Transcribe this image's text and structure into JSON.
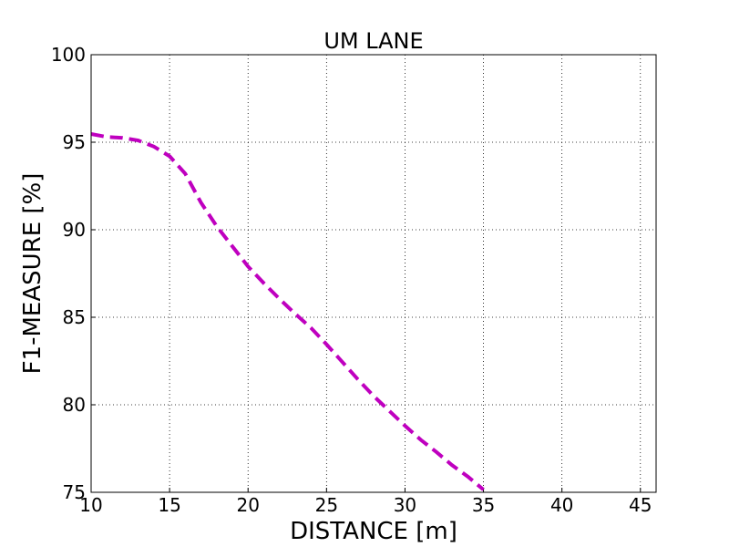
{
  "chart_data": {
    "type": "line",
    "title": "UM LANE",
    "x_label": "DISTANCE [m]",
    "y_label": "F1-MEASURE [%]",
    "x": [
      10,
      11,
      12,
      13,
      14,
      15,
      16,
      17,
      18,
      19,
      20,
      21,
      22,
      23,
      24,
      25,
      26,
      27,
      28,
      29,
      30,
      31,
      32,
      33,
      34,
      35
    ],
    "series": [
      {
        "color": "#bf00bf",
        "values": [
          95.47,
          95.3,
          95.25,
          95.1,
          94.75,
          94.2,
          93.2,
          91.55,
          90.2,
          89.05,
          87.9,
          86.95,
          86.05,
          85.2,
          84.4,
          83.45,
          82.45,
          81.45,
          80.5,
          79.65,
          78.8,
          78.0,
          77.3,
          76.55,
          75.9,
          75.15
        ]
      }
    ],
    "xlim": [
      10,
      46
    ],
    "xticks": [
      10,
      15,
      20,
      25,
      30,
      35,
      40,
      45
    ],
    "ylim": [
      75,
      100
    ],
    "yticks": [
      75,
      80,
      85,
      90,
      95,
      100
    ],
    "grid": true
  }
}
